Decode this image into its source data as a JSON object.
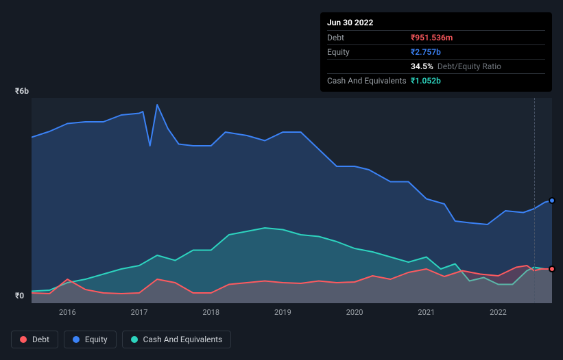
{
  "chart": {
    "type": "area",
    "background_color": "#1b2430",
    "page_background": "#151b24",
    "ylim": [
      0,
      6
    ],
    "y_unit": "b",
    "y_currency": "₹",
    "y_ticks": [
      0,
      6
    ],
    "y_tick_labels": [
      "₹0",
      "₹6b"
    ],
    "x_years": [
      2016,
      2017,
      2018,
      2019,
      2020,
      2021,
      2022
    ],
    "x_min": 2015.5,
    "x_max": 2022.75,
    "guide_x": 2022.5,
    "series": {
      "equity": {
        "label": "Equity",
        "color": "#3b82f6",
        "fill_opacity": 0.22,
        "stroke_width": 2,
        "points": [
          [
            2015.5,
            4.85
          ],
          [
            2015.75,
            5.02
          ],
          [
            2016.0,
            5.25
          ],
          [
            2016.25,
            5.3
          ],
          [
            2016.5,
            5.3
          ],
          [
            2016.75,
            5.5
          ],
          [
            2017.0,
            5.55
          ],
          [
            2017.05,
            5.6
          ],
          [
            2017.15,
            4.6
          ],
          [
            2017.25,
            5.8
          ],
          [
            2017.4,
            5.1
          ],
          [
            2017.55,
            4.65
          ],
          [
            2017.75,
            4.6
          ],
          [
            2018.0,
            4.6
          ],
          [
            2018.2,
            5.0
          ],
          [
            2018.5,
            4.9
          ],
          [
            2018.75,
            4.75
          ],
          [
            2019.0,
            5.0
          ],
          [
            2019.25,
            5.0
          ],
          [
            2019.45,
            4.6
          ],
          [
            2019.75,
            4.0
          ],
          [
            2020.0,
            4.0
          ],
          [
            2020.2,
            3.9
          ],
          [
            2020.5,
            3.55
          ],
          [
            2020.75,
            3.55
          ],
          [
            2021.0,
            3.05
          ],
          [
            2021.25,
            2.9
          ],
          [
            2021.4,
            2.4
          ],
          [
            2021.6,
            2.35
          ],
          [
            2021.85,
            2.3
          ],
          [
            2022.1,
            2.7
          ],
          [
            2022.35,
            2.65
          ],
          [
            2022.5,
            2.76
          ],
          [
            2022.65,
            2.95
          ],
          [
            2022.75,
            3.0
          ]
        ]
      },
      "cash": {
        "label": "Cash And Equivalents",
        "color": "#2dd4bf",
        "fill_opacity": 0.22,
        "stroke_width": 2,
        "points": [
          [
            2015.5,
            0.35
          ],
          [
            2015.75,
            0.38
          ],
          [
            2016.0,
            0.6
          ],
          [
            2016.25,
            0.7
          ],
          [
            2016.5,
            0.85
          ],
          [
            2016.75,
            1.0
          ],
          [
            2017.0,
            1.1
          ],
          [
            2017.25,
            1.4
          ],
          [
            2017.5,
            1.25
          ],
          [
            2017.75,
            1.55
          ],
          [
            2018.0,
            1.55
          ],
          [
            2018.25,
            2.0
          ],
          [
            2018.5,
            2.1
          ],
          [
            2018.75,
            2.2
          ],
          [
            2019.0,
            2.15
          ],
          [
            2019.25,
            2.0
          ],
          [
            2019.5,
            1.95
          ],
          [
            2019.75,
            1.8
          ],
          [
            2020.0,
            1.6
          ],
          [
            2020.25,
            1.5
          ],
          [
            2020.5,
            1.35
          ],
          [
            2020.75,
            1.2
          ],
          [
            2021.0,
            1.35
          ],
          [
            2021.2,
            1.0
          ],
          [
            2021.4,
            1.15
          ],
          [
            2021.6,
            0.65
          ],
          [
            2021.8,
            0.75
          ],
          [
            2022.0,
            0.55
          ],
          [
            2022.2,
            0.55
          ],
          [
            2022.4,
            0.95
          ],
          [
            2022.5,
            1.05
          ],
          [
            2022.65,
            1.0
          ],
          [
            2022.75,
            1.0
          ]
        ]
      },
      "debt": {
        "label": "Debt",
        "color": "#ff5a5f",
        "fill_opacity": 0.22,
        "stroke_width": 2,
        "points": [
          [
            2015.5,
            0.3
          ],
          [
            2015.75,
            0.28
          ],
          [
            2016.0,
            0.7
          ],
          [
            2016.25,
            0.4
          ],
          [
            2016.5,
            0.3
          ],
          [
            2016.75,
            0.28
          ],
          [
            2017.0,
            0.3
          ],
          [
            2017.25,
            0.7
          ],
          [
            2017.5,
            0.6
          ],
          [
            2017.75,
            0.3
          ],
          [
            2018.0,
            0.3
          ],
          [
            2018.25,
            0.55
          ],
          [
            2018.5,
            0.6
          ],
          [
            2018.75,
            0.65
          ],
          [
            2019.0,
            0.6
          ],
          [
            2019.25,
            0.58
          ],
          [
            2019.5,
            0.65
          ],
          [
            2019.75,
            0.6
          ],
          [
            2020.0,
            0.62
          ],
          [
            2020.25,
            0.8
          ],
          [
            2020.5,
            0.7
          ],
          [
            2020.75,
            0.9
          ],
          [
            2021.0,
            1.0
          ],
          [
            2021.25,
            0.78
          ],
          [
            2021.5,
            0.95
          ],
          [
            2021.75,
            0.85
          ],
          [
            2022.0,
            0.8
          ],
          [
            2022.25,
            1.05
          ],
          [
            2022.4,
            1.1
          ],
          [
            2022.5,
            0.95
          ],
          [
            2022.6,
            1.0
          ],
          [
            2022.75,
            1.0
          ]
        ]
      }
    },
    "anchor_points": [
      {
        "series": "equity",
        "x": 2022.75,
        "y": 3.0,
        "color": "#3b82f6"
      },
      {
        "series": "cash",
        "x": 2022.75,
        "y": 1.0,
        "color": "#2dd4bf"
      },
      {
        "series": "debt",
        "x": 2022.75,
        "y": 1.0,
        "color": "#ff5a5f"
      }
    ]
  },
  "tooltip": {
    "date": "Jun 30 2022",
    "rows": [
      {
        "label": "Debt",
        "value": "₹951.536m",
        "class": "v-debt"
      },
      {
        "label": "Equity",
        "value": "₹2.757b",
        "class": "v-equity"
      },
      {
        "label": "",
        "value": "34.5%",
        "class": "v-ratio",
        "sub": "Debt/Equity Ratio"
      },
      {
        "label": "Cash And Equivalents",
        "value": "₹1.052b",
        "class": "v-cash"
      }
    ]
  },
  "legend": [
    {
      "label": "Debt",
      "color": "#ff5a5f"
    },
    {
      "label": "Equity",
      "color": "#3b82f6"
    },
    {
      "label": "Cash And Equivalents",
      "color": "#2dd4bf"
    }
  ]
}
